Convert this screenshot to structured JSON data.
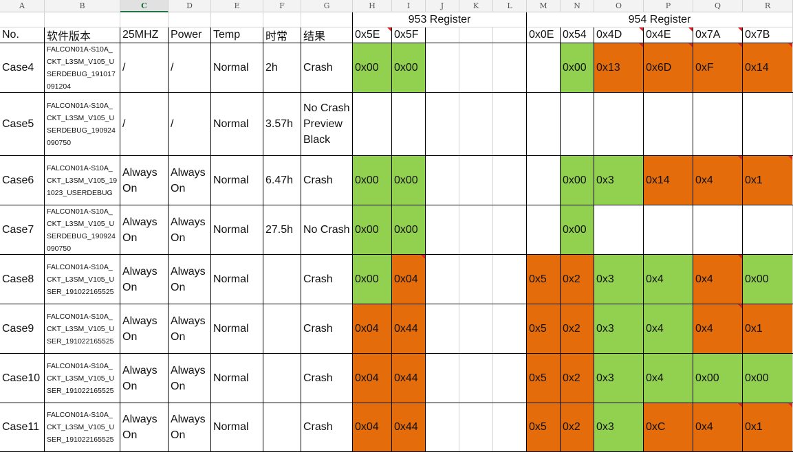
{
  "colors": {
    "green": "#92d050",
    "orange": "#e46c0a",
    "white": "#ffffff"
  },
  "column_letters": [
    "A",
    "B",
    "C",
    "D",
    "E",
    "F",
    "G",
    "H",
    "I",
    "J",
    "K",
    "L",
    "M",
    "N",
    "O",
    "P",
    "Q",
    "R"
  ],
  "selected_column": "C",
  "groups": {
    "r953": "953 Register",
    "r954": "954 Register"
  },
  "header": [
    "No.",
    "软件版本",
    "25MHZ",
    "Power",
    "Temp",
    "时常",
    "结果",
    "0x5E",
    "0x5F",
    "",
    "",
    "",
    "0x0E",
    "0x54",
    "0x4D",
    "0x4E",
    "0x7A",
    "0x7B"
  ],
  "rows": [
    {
      "cells": [
        "Case4",
        "FALCON01A-S10A_CKT_L3SM_V105_USERDEBUG_191017091204",
        "/",
        "/",
        "Normal",
        "2h",
        "Crash",
        "0x00",
        "0x00",
        "",
        "",
        "",
        "",
        "0x00",
        "0x13",
        "0x6D",
        "0xF",
        "0x14"
      ],
      "fills": [
        "",
        "",
        "",
        "",
        "",
        "",
        "",
        "green",
        "green",
        "",
        "",
        "",
        "",
        "green",
        "orange",
        "orange",
        "orange",
        "orange"
      ]
    },
    {
      "cells": [
        "Case5",
        "FALCON01A-S10A_CKT_L3SM_V105_USERDEBUG_190924090750",
        "/",
        "/",
        "Normal",
        "3.57h",
        "No Crash Preview Black",
        "",
        "",
        "",
        "",
        "",
        "",
        "",
        "",
        "",
        "",
        ""
      ],
      "fills": [
        "",
        "",
        "",
        "",
        "",
        "",
        "",
        "",
        "",
        "",
        "",
        "",
        "",
        "",
        "",
        "",
        "",
        ""
      ]
    },
    {
      "cells": [
        "Case6",
        "FALCON01A-S10A_CKT_L3SM_V105_191023_USERDEBUG",
        "Always On",
        "Always On",
        "Normal",
        "6.47h",
        "Crash",
        "0x00",
        "0x00",
        "",
        "",
        "",
        "",
        "0x00",
        "0x3",
        "0x14",
        "0x4",
        "0x1"
      ],
      "fills": [
        "",
        "",
        "",
        "",
        "",
        "",
        "",
        "green",
        "green",
        "",
        "",
        "",
        "",
        "green",
        "green",
        "orange",
        "orange",
        "orange"
      ]
    },
    {
      "cells": [
        "Case7",
        "FALCON01A-S10A_CKT_L3SM_V105_USERDEBUG_190924090750",
        "Always On",
        "Always On",
        "Normal",
        "27.5h",
        "No Crash",
        "0x00",
        "0x00",
        "",
        "",
        "",
        "",
        "0x00",
        "",
        "",
        "",
        ""
      ],
      "fills": [
        "",
        "",
        "",
        "",
        "",
        "",
        "",
        "green",
        "green",
        "",
        "",
        "",
        "",
        "green",
        "",
        "",
        "",
        ""
      ]
    },
    {
      "cells": [
        "Case8",
        "FALCON01A-S10A_CKT_L3SM_V105_USER_191022165525",
        "Always On",
        "Always On",
        "Normal",
        "",
        "Crash",
        "0x00",
        "0x04",
        "",
        "",
        "",
        "0x5",
        "0x2",
        "0x3",
        "0x4",
        "0x4",
        "0x00"
      ],
      "fills": [
        "",
        "",
        "",
        "",
        "",
        "",
        "",
        "green",
        "orange",
        "",
        "",
        "",
        "orange",
        "orange",
        "green",
        "green",
        "orange",
        "green"
      ]
    },
    {
      "cells": [
        "Case9",
        "FALCON01A-S10A_CKT_L3SM_V105_USER_191022165525",
        "Always On",
        "Always On",
        "Normal",
        "",
        "Crash",
        "0x04",
        "0x44",
        "",
        "",
        "",
        "0x5",
        "0x2",
        "0x3",
        "0x4",
        "0x4",
        "0x1"
      ],
      "fills": [
        "",
        "",
        "",
        "",
        "",
        "",
        "",
        "orange",
        "orange",
        "",
        "",
        "",
        "orange",
        "orange",
        "green",
        "green",
        "orange",
        "orange"
      ]
    },
    {
      "cells": [
        "Case10",
        "FALCON01A-S10A_CKT_L3SM_V105_USER_191022165525",
        "Always On",
        "Always On",
        "Normal",
        "",
        "Crash",
        "0x04",
        "0x44",
        "",
        "",
        "",
        "0x5",
        "0x2",
        "0x3",
        "0x4",
        "0x00",
        "0x00"
      ],
      "fills": [
        "",
        "",
        "",
        "",
        "",
        "",
        "",
        "orange",
        "orange",
        "",
        "",
        "",
        "orange",
        "orange",
        "green",
        "green",
        "green",
        "green"
      ]
    },
    {
      "cells": [
        "Case11",
        "FALCON01A-S10A_CKT_L3SM_V105_USER_191022165525",
        "Always On",
        "Always On",
        "Normal",
        "",
        "Crash",
        "0x04",
        "0x44",
        "",
        "",
        "",
        "0x5",
        "0x2",
        "0x3",
        "0xC",
        "0x4",
        "0x1"
      ],
      "fills": [
        "",
        "",
        "",
        "",
        "",
        "",
        "",
        "orange",
        "orange",
        "",
        "",
        "",
        "orange",
        "orange",
        "green",
        "orange",
        "orange",
        "orange"
      ]
    }
  ]
}
